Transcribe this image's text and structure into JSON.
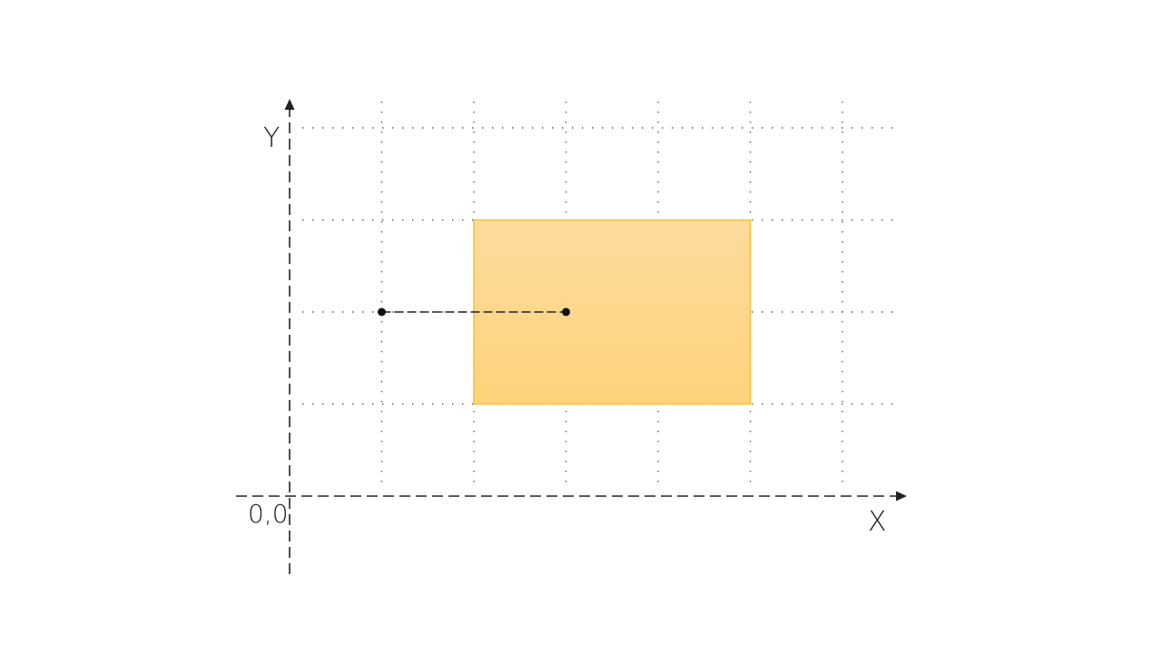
{
  "labels": {
    "y_axis": "Y",
    "x_axis": "X",
    "origin": "0,0"
  },
  "grid": {
    "columns": 6,
    "rows": 4,
    "style": "dotted"
  },
  "rectangle": {
    "x_from": 2,
    "x_to": 5,
    "y_from": 1,
    "y_to": 3,
    "fill_top": "#fddb9b",
    "fill_bottom": "#fdd37c",
    "stroke": "#f6c13a"
  },
  "segment": {
    "from": [
      1,
      2
    ],
    "to": [
      3,
      2
    ],
    "style": "dashed"
  },
  "colors": {
    "axis": "#222222",
    "grid": "#555555",
    "point": "#111111"
  }
}
